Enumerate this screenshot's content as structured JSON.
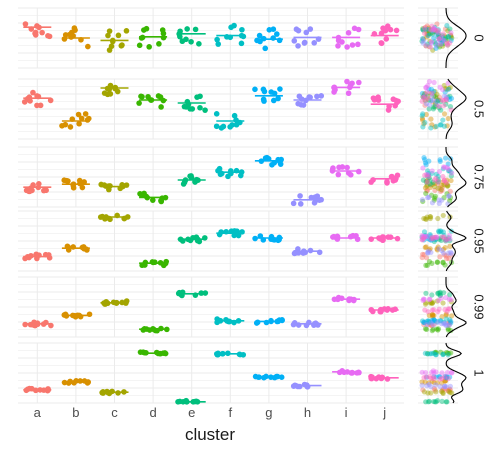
{
  "chart_data": {
    "type": "scatter",
    "title": "",
    "xlabel": "cluster",
    "ylabel": "",
    "categories": [
      "a",
      "b",
      "c",
      "d",
      "e",
      "f",
      "g",
      "h",
      "i",
      "j"
    ],
    "category_colors": [
      "#F8766D",
      "#D89000",
      "#A3A500",
      "#39B600",
      "#00BF7D",
      "#00BFC4",
      "#00B0F6",
      "#9590FF",
      "#E76BF3",
      "#FF62BC"
    ],
    "grid": true,
    "y_tick_labels": false,
    "facet_labels": [
      "0",
      "0.5",
      "0.75",
      "0.95",
      "0.99",
      "1"
    ],
    "panel_ylim": [
      0,
      1
    ],
    "panels": [
      {
        "label": "0",
        "median": [
          0.68,
          0.5,
          0.46,
          0.52,
          0.57,
          0.54,
          0.48,
          0.51,
          0.51,
          0.54
        ],
        "spread": 0.17
      },
      {
        "label": "0.5",
        "median": [
          0.68,
          0.3,
          0.85,
          0.65,
          0.6,
          0.3,
          0.72,
          0.65,
          0.86,
          0.58
        ],
        "spread": 0.12
      },
      {
        "label": "0.75",
        "median": [
          0.33,
          0.38,
          0.34,
          0.16,
          0.45,
          0.58,
          0.77,
          0.12,
          0.6,
          0.47
        ],
        "spread": 0.07
      },
      {
        "label": "0.95",
        "median": [
          0.24,
          0.38,
          0.9,
          0.13,
          0.53,
          0.63,
          0.55,
          0.33,
          0.55,
          0.55
        ],
        "spread": 0.04
      },
      {
        "label": "0.99",
        "median": [
          0.22,
          0.36,
          0.57,
          0.13,
          0.72,
          0.27,
          0.26,
          0.22,
          0.63,
          0.45
        ],
        "spread": 0.03
      },
      {
        "label": "1",
        "median": [
          0.22,
          0.35,
          0.18,
          0.83,
          0.02,
          0.82,
          0.43,
          0.29,
          0.52,
          0.42
        ],
        "spread": 0.02
      }
    ],
    "marginal_density": true
  }
}
